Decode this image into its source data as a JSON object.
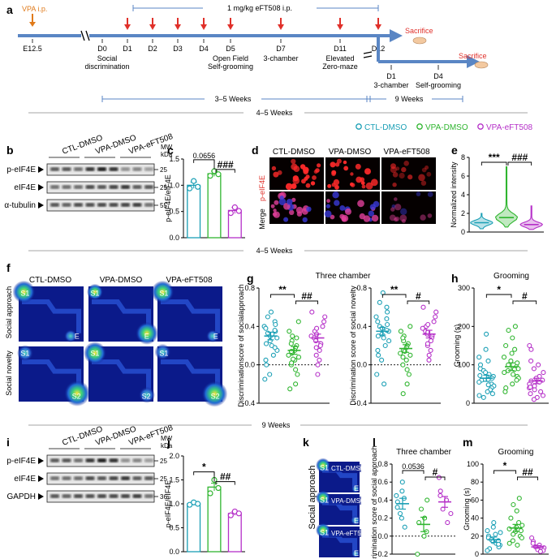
{
  "colors": {
    "ctl": "#1a9fb5",
    "vpa": "#2fb52f",
    "eft": "#b52fc8",
    "timeline": "#5a86c4",
    "arrow_red": "#e0302a",
    "arrow_orange": "#e07a1a",
    "heat_bg": "#0b1a8a"
  },
  "legend": {
    "items": [
      "CTL-DMSO",
      "VPA-DMSO",
      "VPA-eFT508"
    ]
  },
  "panel_a": {
    "letter": "a",
    "vpa_label": "VPA i.p.",
    "drug_label": "1 mg/kg eFT508 i.p.",
    "days_top": [
      "E12.5",
      "D0",
      "D1",
      "D2",
      "D3",
      "D4",
      "D5",
      "D7",
      "D11",
      "D12"
    ],
    "days_bottom": [
      "D1",
      "D4"
    ],
    "tasks": [
      "Social\ndiscrimination",
      "Open Field\nSelf-grooming",
      "3-chamber",
      "Elevated\nZero-maze"
    ],
    "tasks_bottom": [
      "3-chamber",
      "Self-grooming"
    ],
    "sacrifice": [
      "Sacrifice",
      "Sacrifice"
    ],
    "span1": "3–5 Weeks",
    "span2": "9 Weeks"
  },
  "section_labels": [
    "4–5 Weeks",
    "4–5 Weeks",
    "9 Weeks"
  ],
  "panel_b": {
    "letter": "b",
    "groups": [
      "CTL-DMSO",
      "VPA-DMSO",
      "VPA-eFT508"
    ],
    "rows": [
      "p-eIF4E",
      "eIF4E",
      "α-tubulin"
    ],
    "mw_header": "MW\nkDa",
    "mw": [
      "25",
      "25",
      "55"
    ]
  },
  "panel_i": {
    "letter": "i",
    "groups": [
      "CTL-DMSO",
      "VPA-DMSO",
      "VPA-eFT508"
    ],
    "rows": [
      "p-eIF4E",
      "eIF4E",
      "GAPDH"
    ],
    "mw_header": "MW\nkDa",
    "mw": [
      "25",
      "25",
      "36"
    ]
  },
  "panel_d": {
    "letter": "d",
    "cols": [
      "CTL-DMSO",
      "VPA-DMSO",
      "VPA-eFT508"
    ],
    "rows": [
      "p-eIF4E",
      "Merge"
    ]
  },
  "panel_f": {
    "letter": "f",
    "cols": [
      "CTL-DMSO",
      "VPA-DMSO",
      "VPA-eFT508"
    ],
    "rows": [
      "Social approach",
      "Social novelty"
    ],
    "tags": [
      "S1",
      "E",
      "S2"
    ]
  },
  "panel_k": {
    "letter": "k",
    "row_label": "Social approach",
    "cells": [
      "CTL-DMSO",
      "VPA-DMSO",
      "VPA-eFT508"
    ],
    "tags": [
      "S1",
      "E"
    ]
  },
  "chart_data": [
    {
      "id": "c",
      "letter": "c",
      "type": "bar",
      "categories": [
        "CTL-DMSO",
        "VPA-DMSO",
        "VPA-eFT508"
      ],
      "values": [
        1.0,
        1.22,
        0.52
      ],
      "errors": [
        0.06,
        0.05,
        0.06
      ],
      "points": [
        [
          0.94,
          1.08,
          0.97
        ],
        [
          1.18,
          1.27,
          1.21
        ],
        [
          0.47,
          0.58,
          0.51
        ]
      ],
      "ylabel": "p-eIF4E/eIF4E",
      "ylim": [
        0,
        1.5
      ],
      "yticks": [
        0.0,
        0.5,
        1.0,
        1.5
      ],
      "annotations": [
        "0.0656",
        "###"
      ]
    },
    {
      "id": "e",
      "letter": "e",
      "type": "violin",
      "categories": [
        "CTL-DMSO",
        "VPA-DMSO",
        "VPA-eFT508"
      ],
      "medians": [
        1.0,
        1.55,
        0.8
      ],
      "maxima": [
        2.0,
        7.0,
        2.8
      ],
      "ylabel": "Normalized intensity",
      "ylim": [
        0,
        8
      ],
      "yticks": [
        0,
        2,
        4,
        6,
        8
      ],
      "annotations": [
        "***",
        "###"
      ]
    },
    {
      "id": "g1",
      "letter": "g",
      "type": "scatter",
      "title": "Three chamber",
      "categories": [
        "CTL-DMSO",
        "VPA-DMSO",
        "VPA-eFT508"
      ],
      "means": [
        0.3,
        0.15,
        0.28
      ],
      "errors": [
        0.04,
        0.04,
        0.04
      ],
      "points": [
        [
          0.55,
          0.5,
          0.45,
          0.42,
          0.4,
          0.38,
          0.35,
          0.33,
          0.3,
          0.28,
          0.25,
          0.22,
          0.2,
          0.15,
          0.1,
          0.05,
          0.0,
          -0.1,
          -0.15,
          0.32,
          0.36,
          0.18
        ],
        [
          0.45,
          0.35,
          0.3,
          0.25,
          0.2,
          0.18,
          0.15,
          0.12,
          0.1,
          0.08,
          0.05,
          0.0,
          -0.05,
          -0.1,
          -0.2,
          0.22,
          0.14,
          0.06,
          0.02,
          0.28,
          -0.25
        ],
        [
          0.55,
          0.5,
          0.45,
          0.4,
          0.35,
          0.3,
          0.28,
          0.25,
          0.22,
          0.2,
          0.15,
          0.1,
          0.05,
          0.0,
          -0.1,
          0.32,
          0.18,
          0.38
        ]
      ],
      "ylabel": "Discriminationscore of socialapproach",
      "ylim": [
        -0.4,
        0.8
      ],
      "yticks": [
        -0.4,
        0.0,
        0.4,
        0.8
      ],
      "annotations": [
        "**",
        "##"
      ]
    },
    {
      "id": "g2",
      "letter": "",
      "type": "scatter",
      "categories": [
        "CTL-DMSO",
        "VPA-DMSO",
        "VPA-eFT508"
      ],
      "means": [
        0.35,
        0.17,
        0.32
      ],
      "errors": [
        0.04,
        0.04,
        0.04
      ],
      "points": [
        [
          0.75,
          0.65,
          0.6,
          0.55,
          0.5,
          0.45,
          0.42,
          0.4,
          0.38,
          0.35,
          0.32,
          0.3,
          0.28,
          0.25,
          0.2,
          0.15,
          0.1,
          0.05,
          -0.1,
          -0.2,
          0.48,
          0.36
        ],
        [
          0.4,
          0.35,
          0.3,
          0.25,
          0.22,
          0.2,
          0.18,
          0.15,
          0.12,
          0.1,
          0.05,
          0.0,
          -0.05,
          -0.1,
          -0.2,
          0.28,
          0.08,
          0.14,
          -0.3
        ],
        [
          0.6,
          0.55,
          0.5,
          0.45,
          0.4,
          0.38,
          0.35,
          0.32,
          0.3,
          0.28,
          0.25,
          0.2,
          0.15,
          0.1,
          0.05,
          0.34,
          0.22,
          0.42
        ]
      ],
      "ylabel": "Discrimination score of social novelty",
      "ylim": [
        -0.4,
        0.8
      ],
      "yticks": [
        -0.4,
        0.0,
        0.4,
        0.8
      ],
      "annotations": [
        "**",
        "#"
      ]
    },
    {
      "id": "h",
      "letter": "h",
      "type": "scatter",
      "title": "Grooming",
      "categories": [
        "CTL-DMSO",
        "VPA-DMSO",
        "VPA-eFT508"
      ],
      "means": [
        65,
        95,
        58
      ],
      "errors": [
        8,
        10,
        7
      ],
      "points": [
        [
          180,
          140,
          120,
          110,
          100,
          90,
          85,
          80,
          75,
          70,
          65,
          60,
          55,
          50,
          45,
          40,
          35,
          30,
          25,
          20,
          15,
          62,
          72,
          48
        ],
        [
          200,
          190,
          170,
          150,
          140,
          130,
          120,
          110,
          100,
          95,
          90,
          85,
          80,
          75,
          70,
          65,
          60,
          50,
          40,
          30,
          88,
          105
        ],
        [
          150,
          140,
          110,
          100,
          90,
          80,
          70,
          65,
          60,
          55,
          50,
          45,
          40,
          35,
          30,
          25,
          20,
          15,
          10,
          58,
          42
        ]
      ],
      "ylabel": "Grooming (s)",
      "ylim": [
        0,
        300
      ],
      "yticks": [
        0,
        100,
        200,
        300
      ],
      "annotations": [
        "*",
        "#"
      ]
    },
    {
      "id": "j",
      "letter": "j",
      "type": "bar",
      "categories": [
        "CTL-DMSO",
        "VPA-DMSO",
        "VPA-eFT508"
      ],
      "values": [
        1.0,
        1.35,
        0.8
      ],
      "errors": [
        0.03,
        0.08,
        0.04
      ],
      "points": [
        [
          0.98,
          1.03,
          1.0
        ],
        [
          1.22,
          1.5,
          1.33
        ],
        [
          0.76,
          0.84,
          0.8
        ]
      ],
      "ylabel": "p-eIF4E/eIF4E",
      "ylim": [
        0,
        2.0
      ],
      "yticks": [
        0.0,
        0.5,
        1.0,
        1.5,
        2.0
      ],
      "annotations": [
        "*",
        "##"
      ]
    },
    {
      "id": "l",
      "letter": "l",
      "type": "scatter",
      "title": "Three chamber",
      "categories": [
        "CTL-DMSO",
        "VPA-DMSO",
        "VPA-eFT508"
      ],
      "means": [
        0.36,
        0.13,
        0.38
      ],
      "errors": [
        0.06,
        0.08,
        0.06
      ],
      "points": [
        [
          0.6,
          0.5,
          0.45,
          0.42,
          0.38,
          0.32,
          0.25,
          0.2,
          0.1
        ],
        [
          0.4,
          0.3,
          0.2,
          0.15,
          0.05,
          0.0,
          -0.2
        ],
        [
          0.65,
          0.5,
          0.45,
          0.4,
          0.3,
          0.25,
          0.15
        ]
      ],
      "ylabel": "Discrimination score of social approach",
      "ylim": [
        -0.2,
        0.8
      ],
      "yticks": [
        -0.2,
        0.0,
        0.2,
        0.4,
        0.6,
        0.8
      ],
      "annotations": [
        "0.0536",
        "#"
      ]
    },
    {
      "id": "m",
      "letter": "m",
      "type": "scatter",
      "title": "Grooming",
      "categories": [
        "CTL-DMSO",
        "VPA-DMSO",
        "VPA-eFT508"
      ],
      "means": [
        16,
        29,
        8
      ],
      "errors": [
        3,
        4,
        1.5
      ],
      "points": [
        [
          35,
          30,
          26,
          22,
          20,
          18,
          16,
          14,
          12,
          10,
          8,
          6,
          4,
          15,
          24,
          11
        ],
        [
          62,
          55,
          48,
          40,
          35,
          30,
          28,
          25,
          22,
          20,
          18,
          15,
          12,
          10,
          26,
          32
        ],
        [
          18,
          14,
          12,
          10,
          8,
          7,
          6,
          5,
          4,
          3
        ]
      ],
      "ylabel": "Grooming (s)",
      "ylim": [
        0,
        100
      ],
      "yticks": [
        0,
        20,
        40,
        60,
        80,
        100
      ],
      "annotations": [
        "*",
        "##"
      ]
    }
  ]
}
